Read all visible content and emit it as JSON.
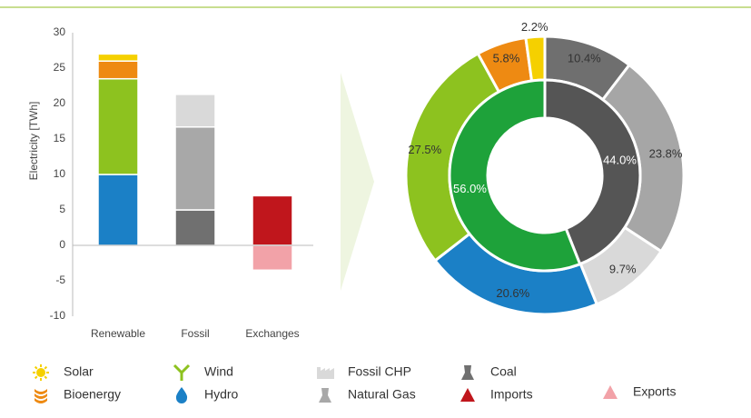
{
  "chart_data": [
    {
      "type": "bar",
      "stacked": true,
      "ylabel": "Electricity [TWh]",
      "categories": [
        "Renewable",
        "Fossil",
        "Exchanges"
      ],
      "series": [
        {
          "name": "Hydro",
          "color": "#1b80c6",
          "values": [
            10,
            null,
            null
          ]
        },
        {
          "name": "Wind",
          "color": "#8dc21f",
          "values": [
            13.5,
            null,
            null
          ]
        },
        {
          "name": "Bioenergy",
          "color": "#ee8a12",
          "values": [
            2.5,
            null,
            null
          ]
        },
        {
          "name": "Solar",
          "color": "#f5d000",
          "values": [
            1,
            null,
            null
          ]
        },
        {
          "name": "Coal",
          "color": "#707070",
          "values": [
            null,
            5,
            null
          ]
        },
        {
          "name": "Natural Gas",
          "color": "#a8a8a8",
          "values": [
            null,
            11.7,
            null
          ]
        },
        {
          "name": "Fossil CHP",
          "color": "#d9d9d9",
          "values": [
            null,
            4.6,
            null
          ]
        },
        {
          "name": "Imports",
          "color": "#c0161c",
          "values": [
            null,
            null,
            7
          ]
        },
        {
          "name": "Exports",
          "color": "#f2a2a8",
          "values": [
            null,
            null,
            -3.5
          ]
        }
      ],
      "ylim": [
        -10,
        30
      ],
      "yticks": [
        -10,
        -5,
        0,
        5,
        10,
        15,
        20,
        25,
        30
      ]
    },
    {
      "type": "pie",
      "donut": true,
      "rings": [
        {
          "values": [
            10.4,
            23.8,
            9.7,
            20.6,
            27.5,
            5.8,
            2.2
          ],
          "value_labels": [
            "10.4%",
            "23.8%",
            "9.7%",
            "20.6%",
            "27.5%",
            "5.8%",
            "2.2%"
          ],
          "colors": [
            "#6f6f6f",
            "#a6a6a6",
            "#d9d9d9",
            "#1b80c6",
            "#8dc21f",
            "#ee8a12",
            "#f5d000"
          ]
        },
        {
          "values": [
            44.0,
            56.0
          ],
          "value_labels": [
            "44.0%",
            "56.0%"
          ],
          "colors": [
            "#555555",
            "#1ea23a"
          ]
        }
      ]
    }
  ]
}
